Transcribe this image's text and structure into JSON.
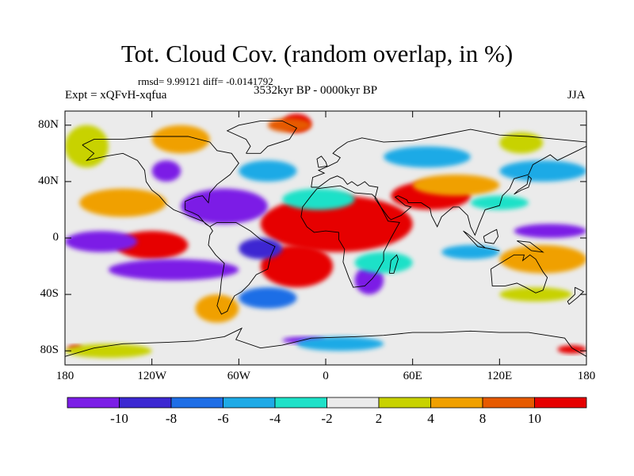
{
  "title": "Tot. Cloud Cov. (random overlap, in %)",
  "stats": "rmsd= 9.99121 diff= -0.0141792",
  "experiment": "Expt = xQFvH-xqfua",
  "period": "3532kyr BP - 0000kyr BP",
  "season": "JJA",
  "map": {
    "projection": "cylindrical-equidistant",
    "lon_range": [
      -180,
      180
    ],
    "lat_range": [
      -90,
      90
    ],
    "lat_ticks": [
      {
        "value": 80,
        "label": "80N"
      },
      {
        "value": 40,
        "label": "40N"
      },
      {
        "value": 0,
        "label": "0"
      },
      {
        "value": -40,
        "label": "40S"
      },
      {
        "value": -80,
        "label": "80S"
      }
    ],
    "lon_ticks": [
      {
        "value": -180,
        "label": "180"
      },
      {
        "value": -120,
        "label": "120W"
      },
      {
        "value": -60,
        "label": "60W"
      },
      {
        "value": 0,
        "label": "0"
      },
      {
        "value": 60,
        "label": "60E"
      },
      {
        "value": 120,
        "label": "120E"
      },
      {
        "value": 180,
        "label": "180"
      }
    ],
    "background_color": "#ebebeb",
    "coastline_color": "#000000"
  },
  "colorbar": {
    "labels": [
      "-10",
      "-8",
      "-6",
      "-4",
      "-2",
      "2",
      "4",
      "8",
      "10"
    ],
    "colors": [
      "#7b1ee6",
      "#3c28d2",
      "#1e6ee6",
      "#1eaae6",
      "#1ee1c8",
      "#ebebeb",
      "#c8d200",
      "#f0a000",
      "#e65a00",
      "#e60000"
    ]
  },
  "field_regions": [
    {
      "color": "#e60000",
      "lon": [
        -45,
        60
      ],
      "lat": [
        -10,
        30
      ],
      "name": "africa-tropics"
    },
    {
      "color": "#e60000",
      "lon": [
        45,
        100
      ],
      "lat": [
        20,
        40
      ],
      "name": "asia-monsoon"
    },
    {
      "color": "#e60000",
      "lon": [
        -145,
        -95
      ],
      "lat": [
        -15,
        5
      ],
      "name": "east-pacific"
    },
    {
      "color": "#e60000",
      "lon": [
        -45,
        5
      ],
      "lat": [
        -35,
        -5
      ],
      "name": "south-atlantic"
    },
    {
      "color": "#e60000",
      "lon": [
        -30,
        -10
      ],
      "lat": [
        75,
        88
      ],
      "name": "greenland"
    },
    {
      "color": "#e60000",
      "lon": [
        -130,
        -100
      ],
      "lat": [
        -5,
        0
      ],
      "name": "pacific-band"
    },
    {
      "color": "#e60000",
      "lon": [
        160,
        180
      ],
      "lat": [
        -82,
        -76
      ],
      "name": "ross-sea"
    },
    {
      "color": "#e60000",
      "lon": [
        -178,
        -168
      ],
      "lat": [
        -80,
        -76
      ],
      "name": "ross-west"
    },
    {
      "color": "#e65a00",
      "lon": [
        -40,
        -10
      ],
      "lat": [
        75,
        85
      ],
      "name": "greenland-edge"
    },
    {
      "color": "#f0a000",
      "lon": [
        -170,
        -110
      ],
      "lat": [
        15,
        35
      ],
      "name": "north-pacific-orange"
    },
    {
      "color": "#f0a000",
      "lon": [
        60,
        120
      ],
      "lat": [
        30,
        45
      ],
      "name": "central-asia-orange"
    },
    {
      "color": "#f0a000",
      "lon": [
        120,
        180
      ],
      "lat": [
        -25,
        -5
      ],
      "name": "south-pacific-orange"
    },
    {
      "color": "#f0a000",
      "lon": [
        -120,
        -80
      ],
      "lat": [
        60,
        80
      ],
      "name": "canada-orange"
    },
    {
      "color": "#f0a000",
      "lon": [
        -90,
        -60
      ],
      "lat": [
        -60,
        -40
      ],
      "name": "patagonia-orange"
    },
    {
      "color": "#c8d200",
      "lon": [
        -180,
        -150
      ],
      "lat": [
        50,
        80
      ],
      "name": "arctic-yellow"
    },
    {
      "color": "#c8d200",
      "lon": [
        120,
        170
      ],
      "lat": [
        -45,
        -35
      ],
      "name": "tasman-yellow"
    },
    {
      "color": "#c8d200",
      "lon": [
        120,
        150
      ],
      "lat": [
        60,
        75
      ],
      "name": "siberia-yellow"
    },
    {
      "color": "#c8d200",
      "lon": [
        -180,
        -120
      ],
      "lat": [
        -85,
        -75
      ],
      "name": "antarctic-yellow"
    },
    {
      "color": "#7b1ee6",
      "lon": [
        -180,
        -130
      ],
      "lat": [
        -10,
        5
      ],
      "name": "central-pacific-purple"
    },
    {
      "color": "#7b1ee6",
      "lon": [
        -150,
        -60
      ],
      "lat": [
        -30,
        -15
      ],
      "name": "south-pacific-purple"
    },
    {
      "color": "#7b1ee6",
      "lon": [
        -100,
        -40
      ],
      "lat": [
        10,
        35
      ],
      "name": "caribbean-purple"
    },
    {
      "color": "#7b1ee6",
      "lon": [
        20,
        40
      ],
      "lat": [
        -40,
        -20
      ],
      "name": "south-africa-purple"
    },
    {
      "color": "#7b1ee6",
      "lon": [
        130,
        180
      ],
      "lat": [
        0,
        10
      ],
      "name": "west-pacific-purple"
    },
    {
      "color": "#7b1ee6",
      "lon": [
        -120,
        -100
      ],
      "lat": [
        40,
        55
      ],
      "name": "north-america-purple"
    },
    {
      "color": "#7b1ee6",
      "lon": [
        -30,
        0
      ],
      "lat": [
        -75,
        -70
      ],
      "name": "weddell-purple"
    },
    {
      "color": "#3c28d2",
      "lon": [
        -60,
        -30
      ],
      "lat": [
        -15,
        0
      ],
      "name": "brazil-blue"
    },
    {
      "color": "#1e6ee6",
      "lon": [
        -60,
        -20
      ],
      "lat": [
        -50,
        -35
      ],
      "name": "south-atlantic-blue"
    },
    {
      "color": "#1eaae6",
      "lon": [
        40,
        100
      ],
      "lat": [
        50,
        65
      ],
      "name": "siberia-cyan"
    },
    {
      "color": "#1eaae6",
      "lon": [
        120,
        180
      ],
      "lat": [
        40,
        55
      ],
      "name": "north-pacific-cyan"
    },
    {
      "color": "#1eaae6",
      "lon": [
        -60,
        -20
      ],
      "lat": [
        40,
        55
      ],
      "name": "north-atlantic-cyan"
    },
    {
      "color": "#1eaae6",
      "lon": [
        80,
        120
      ],
      "lat": [
        -15,
        -5
      ],
      "name": "indian-ocean-cyan"
    },
    {
      "color": "#1eaae6",
      "lon": [
        -20,
        40
      ],
      "lat": [
        -80,
        -70
      ],
      "name": "antarctic-cyan"
    },
    {
      "color": "#1ee1c8",
      "lon": [
        -30,
        20
      ],
      "lat": [
        20,
        35
      ],
      "name": "north-atlantic-teal"
    },
    {
      "color": "#1ee1c8",
      "lon": [
        20,
        60
      ],
      "lat": [
        -25,
        -10
      ],
      "name": "mozambique-teal"
    },
    {
      "color": "#1ee1c8",
      "lon": [
        100,
        140
      ],
      "lat": [
        20,
        30
      ],
      "name": "china-teal"
    }
  ]
}
